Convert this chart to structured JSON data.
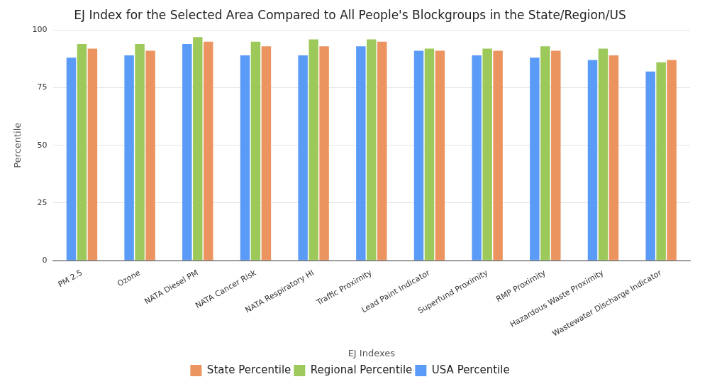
{
  "chart_data": {
    "type": "bar",
    "title": "EJ Index for the Selected Area Compared to All People's Blockgroups in the State/Region/US",
    "xlabel": "EJ Indexes",
    "ylabel": "Percentile",
    "categories": [
      "PM 2.5",
      "Ozone",
      "NATA Diesel PM",
      "NATA Cancer Risk",
      "NATA Respiratory HI",
      "Traffic Proximity",
      "Lead Paint Indicator",
      "Superfund Proximity",
      "RMP Proximity",
      "Hazardous Waste Proximity",
      "Wastewater Discharge Indicator"
    ],
    "series": [
      {
        "name": "USA Percentile",
        "color": "#5b9bf8",
        "values": [
          88,
          89,
          94,
          89,
          89,
          93,
          91,
          89,
          88,
          87,
          82
        ]
      },
      {
        "name": "Regional Percentile",
        "color": "#9cc95a",
        "values": [
          94,
          94,
          97,
          95,
          96,
          96,
          92,
          92,
          93,
          92,
          86
        ]
      },
      {
        "name": "State Percentile",
        "color": "#ec9460",
        "values": [
          92,
          91,
          95,
          93,
          93,
          95,
          91,
          91,
          91,
          89,
          87
        ]
      }
    ],
    "ylim": [
      0,
      100
    ],
    "yticks": [
      0,
      25,
      50,
      75,
      100
    ],
    "grid": "y",
    "legend": "bottom"
  }
}
